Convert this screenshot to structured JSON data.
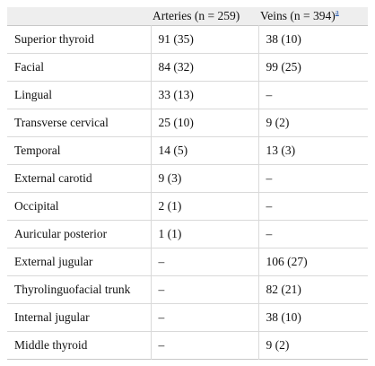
{
  "table": {
    "headers": [
      "",
      "Arteries (n = 259)",
      "Veins (n = 394)"
    ],
    "header_footnote": "a",
    "rows": [
      [
        "Superior thyroid",
        "91 (35)",
        "38 (10)"
      ],
      [
        "Facial",
        "84 (32)",
        "99 (25)"
      ],
      [
        "Lingual",
        "33 (13)",
        "–"
      ],
      [
        "Transverse cervical",
        "25 (10)",
        "9 (2)"
      ],
      [
        "Temporal",
        "14 (5)",
        "13 (3)"
      ],
      [
        "External carotid",
        "9 (3)",
        "–"
      ],
      [
        "Occipital",
        "2 (1)",
        "–"
      ],
      [
        "Auricular posterior",
        "1 (1)",
        "–"
      ],
      [
        "External jugular",
        "–",
        "106 (27)"
      ],
      [
        "Thyrolinguofacial trunk",
        "–",
        "82 (21)"
      ],
      [
        "Internal jugular",
        "–",
        "38 (10)"
      ],
      [
        "Middle thyroid",
        "–",
        "9 (2)"
      ]
    ]
  },
  "colors": {
    "header_bg": "#eeeeee",
    "footnote_link": "#2a5db0",
    "rule": "#d9d9d9"
  }
}
